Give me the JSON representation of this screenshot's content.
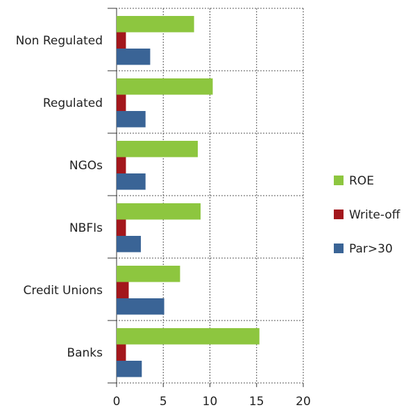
{
  "chart_data": {
    "type": "barh",
    "categories": [
      "Non Regulated",
      "Regulated",
      "NGOs",
      "NBFIs",
      "Credit Unions",
      "Banks"
    ],
    "series": [
      {
        "name": "ROE",
        "color": "#8dc63f",
        "values": [
          8.3,
          10.3,
          8.7,
          9.0,
          6.8,
          15.3
        ]
      },
      {
        "name": "Write-off",
        "color": "#a3171c",
        "values": [
          1.0,
          1.0,
          1.0,
          1.0,
          1.3,
          1.0
        ]
      },
      {
        "name": "Par>30",
        "color": "#3a6496",
        "values": [
          3.6,
          3.1,
          3.1,
          2.6,
          5.1,
          2.7
        ]
      }
    ],
    "xlim": [
      0,
      20
    ],
    "xticks": [
      0,
      5,
      10,
      15,
      20
    ],
    "grid": true,
    "legend": "right"
  }
}
